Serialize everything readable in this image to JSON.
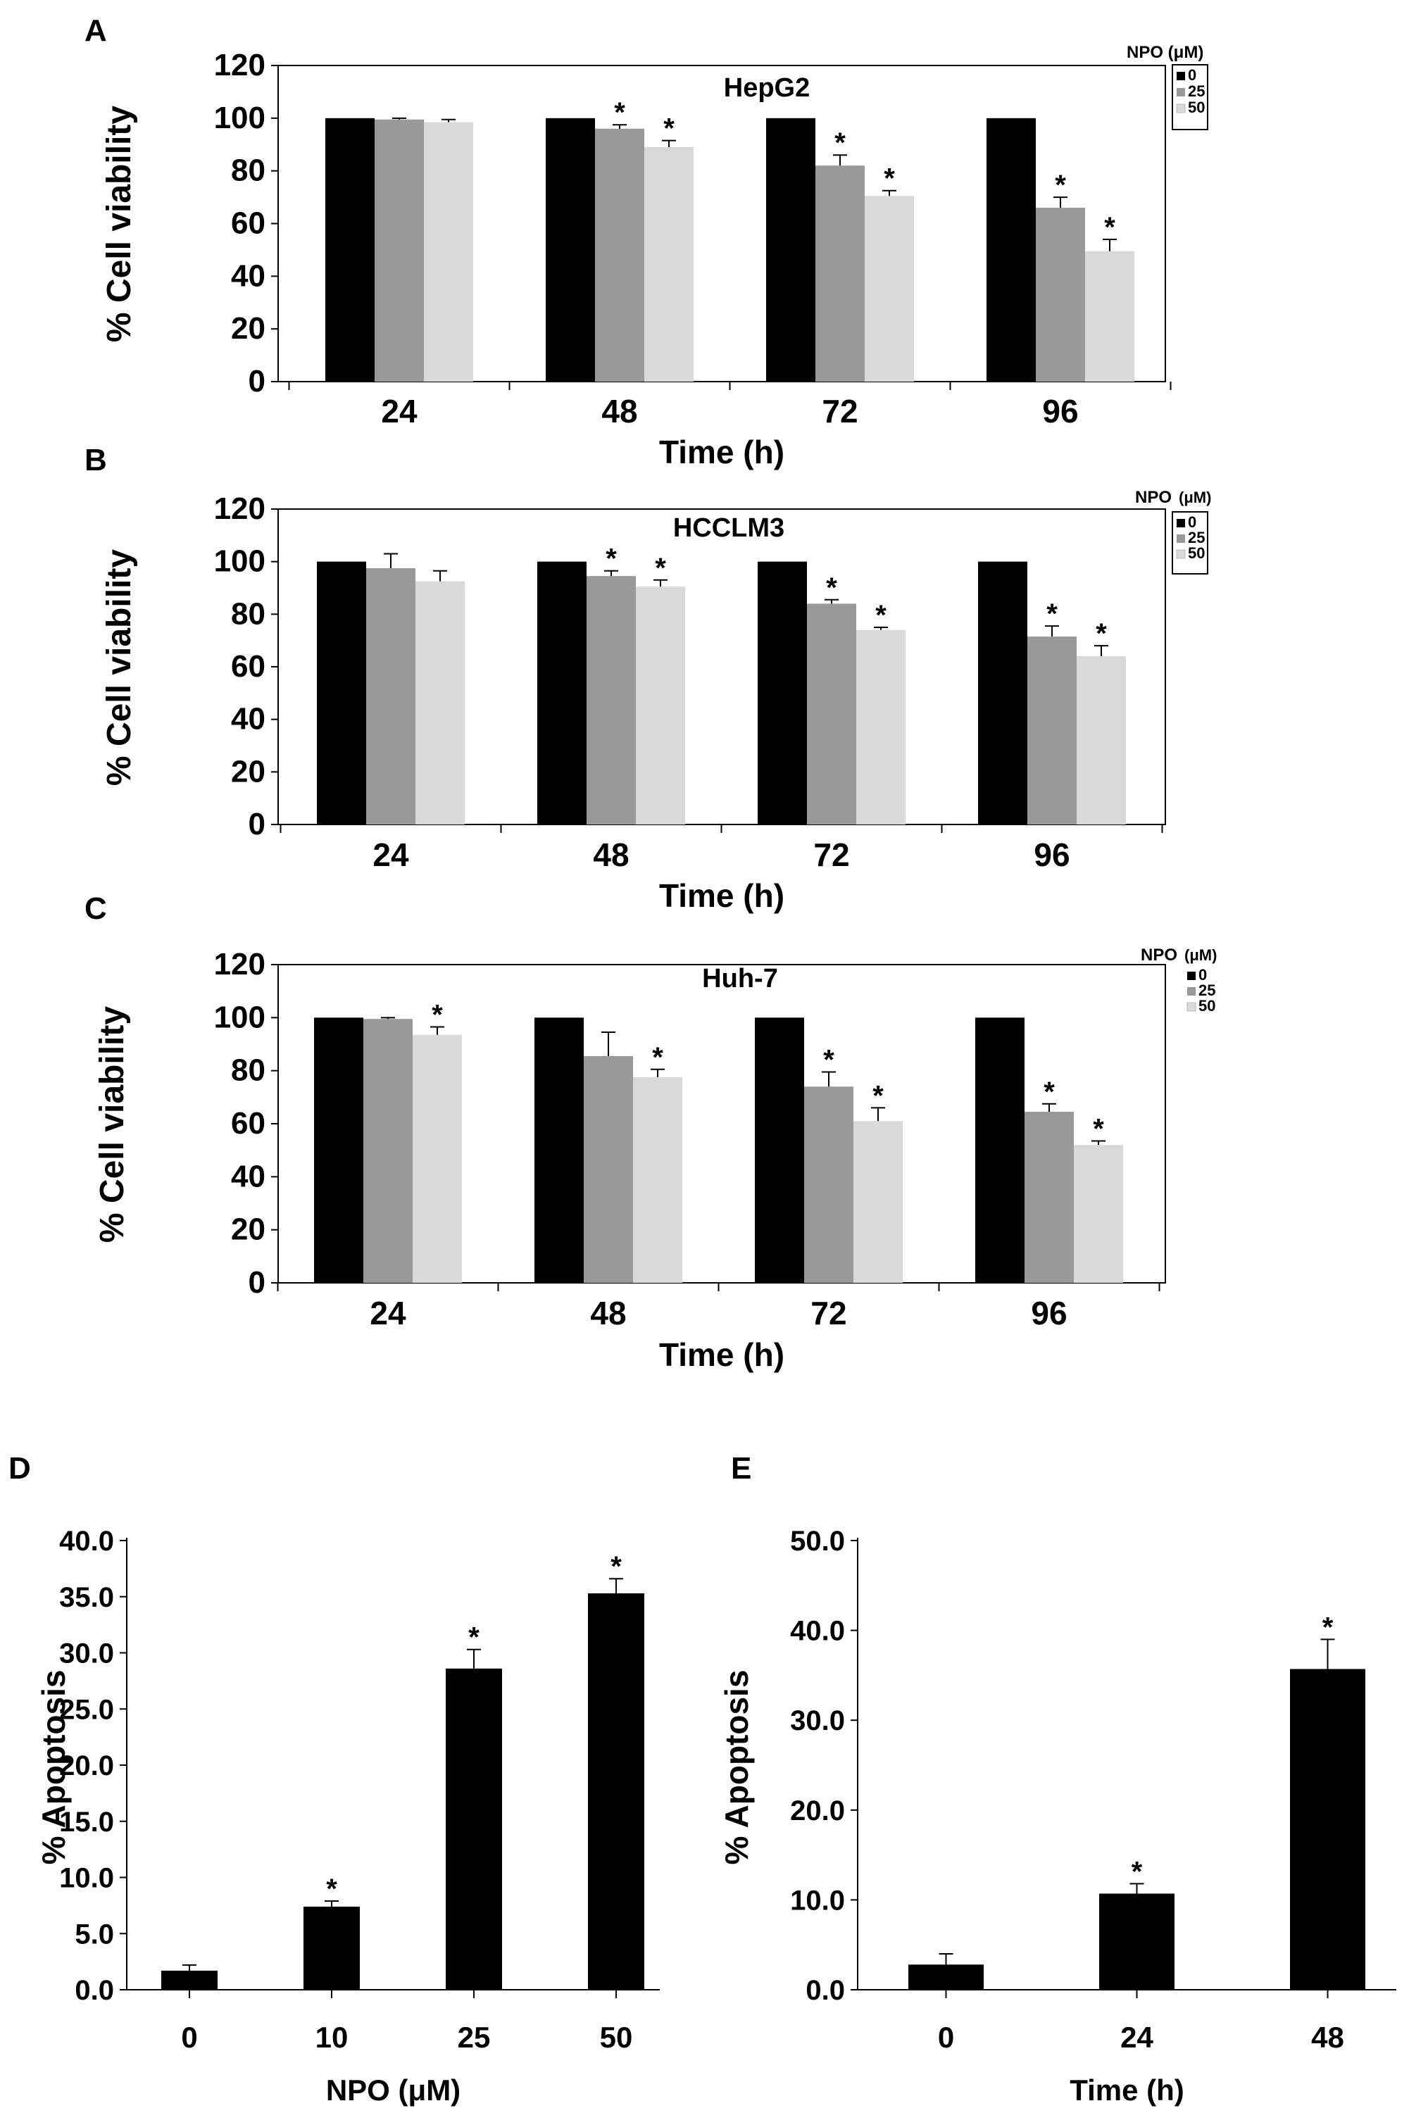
{
  "colors": {
    "black": "#000000",
    "dark_gray": "#999999",
    "light_gray": "#d9d9d9",
    "bar_single": "#000000"
  },
  "chart_data": [
    {
      "type": "bar",
      "panel_label": "A",
      "title": "HepG2",
      "xlabel": "Time (h)",
      "ylabel": "% Cell viability",
      "ylim": [
        0,
        120
      ],
      "yticks": [
        "0",
        "20",
        "40",
        "60",
        "80",
        "100",
        "120"
      ],
      "legend_title": "NPO (μM)",
      "legend_position": "top-right",
      "legend_boxed": true,
      "categories": [
        "24",
        "48",
        "72",
        "96"
      ],
      "series": [
        {
          "name": "0",
          "color": "#000000",
          "values": [
            100,
            100,
            100,
            100
          ],
          "errors": [
            0,
            0,
            0,
            0
          ],
          "stars": [
            false,
            false,
            false,
            false
          ]
        },
        {
          "name": "25",
          "color": "#999999",
          "values": [
            99.5,
            96,
            82,
            66
          ],
          "errors": [
            0.5,
            1.5,
            4,
            4
          ],
          "stars": [
            false,
            true,
            true,
            true
          ]
        },
        {
          "name": "50",
          "color": "#d9d9d9",
          "values": [
            98.5,
            89,
            70.5,
            49.5
          ],
          "errors": [
            1,
            2.5,
            2,
            4.5
          ],
          "stars": [
            false,
            true,
            true,
            true
          ]
        }
      ]
    },
    {
      "type": "bar",
      "panel_label": "B",
      "title": "HCCLM3",
      "xlabel": "Time (h)",
      "ylabel": "% Cell viability",
      "ylim": [
        0,
        120
      ],
      "yticks": [
        "0",
        "20",
        "40",
        "60",
        "80",
        "100",
        "120"
      ],
      "legend_title": "NPO",
      "legend_unit": "(μM)",
      "legend_position": "top-right",
      "legend_boxed": true,
      "categories": [
        "24",
        "48",
        "72",
        "96"
      ],
      "series": [
        {
          "name": "0",
          "color": "#000000",
          "values": [
            100,
            100,
            100,
            100
          ],
          "errors": [
            0,
            0,
            0,
            0
          ],
          "stars": [
            false,
            false,
            false,
            false
          ]
        },
        {
          "name": "25",
          "color": "#999999",
          "values": [
            97.5,
            94.5,
            84,
            71.5
          ],
          "errors": [
            5.5,
            2,
            1.5,
            4
          ],
          "stars": [
            false,
            true,
            true,
            true
          ]
        },
        {
          "name": "50",
          "color": "#d9d9d9",
          "values": [
            92.5,
            90.5,
            74,
            64
          ],
          "errors": [
            4,
            2.5,
            1,
            4
          ],
          "stars": [
            false,
            true,
            true,
            true
          ]
        }
      ]
    },
    {
      "type": "bar",
      "panel_label": "C",
      "title": "Huh-7",
      "xlabel": "Time (h)",
      "ylabel": "% Cell viability",
      "ylim": [
        0,
        120
      ],
      "yticks": [
        "0",
        "20",
        "40",
        "60",
        "80",
        "100",
        "120"
      ],
      "legend_title": "NPO",
      "legend_unit": "(μM)",
      "legend_position": "top-right",
      "legend_boxed": false,
      "categories": [
        "24",
        "48",
        "72",
        "96"
      ],
      "series": [
        {
          "name": "0",
          "color": "#000000",
          "values": [
            100,
            100,
            100,
            100
          ],
          "errors": [
            0,
            0,
            0,
            0
          ],
          "stars": [
            false,
            false,
            false,
            false
          ]
        },
        {
          "name": "25",
          "color": "#999999",
          "values": [
            99.5,
            85.5,
            74,
            64.5
          ],
          "errors": [
            0.5,
            9,
            5.5,
            3
          ],
          "stars": [
            false,
            false,
            true,
            true
          ]
        },
        {
          "name": "50",
          "color": "#d9d9d9",
          "values": [
            93.5,
            77.5,
            61,
            52
          ],
          "errors": [
            3,
            3,
            5,
            1.5
          ],
          "stars": [
            true,
            true,
            true,
            true
          ]
        }
      ]
    },
    {
      "type": "bar",
      "panel_label": "D",
      "title": "",
      "xlabel": "NPO (μM)",
      "ylabel": "% Apoptosis",
      "ylim": [
        0,
        40
      ],
      "yticks": [
        "0.0",
        "5.0",
        "10.0",
        "15.0",
        "20.0",
        "25.0",
        "30.0",
        "35.0",
        "40.0"
      ],
      "categories": [
        "0",
        "10",
        "25",
        "50"
      ],
      "series": [
        {
          "name": "Apoptosis",
          "color": "#000000",
          "values": [
            1.7,
            7.4,
            28.6,
            35.3
          ],
          "errors": [
            0.5,
            0.5,
            1.7,
            1.3
          ],
          "stars": [
            false,
            true,
            true,
            true
          ]
        }
      ]
    },
    {
      "type": "bar",
      "panel_label": "E",
      "title": "",
      "xlabel": "Time (h)",
      "ylabel": "% Apoptosis",
      "ylim": [
        0,
        50
      ],
      "yticks": [
        "0.0",
        "10.0",
        "20.0",
        "30.0",
        "40.0",
        "50.0"
      ],
      "categories": [
        "0",
        "24",
        "48"
      ],
      "series": [
        {
          "name": "Apoptosis",
          "color": "#000000",
          "values": [
            2.8,
            10.7,
            35.7
          ],
          "errors": [
            1.2,
            1.1,
            3.3
          ],
          "stars": [
            false,
            true,
            true
          ]
        }
      ]
    }
  ]
}
